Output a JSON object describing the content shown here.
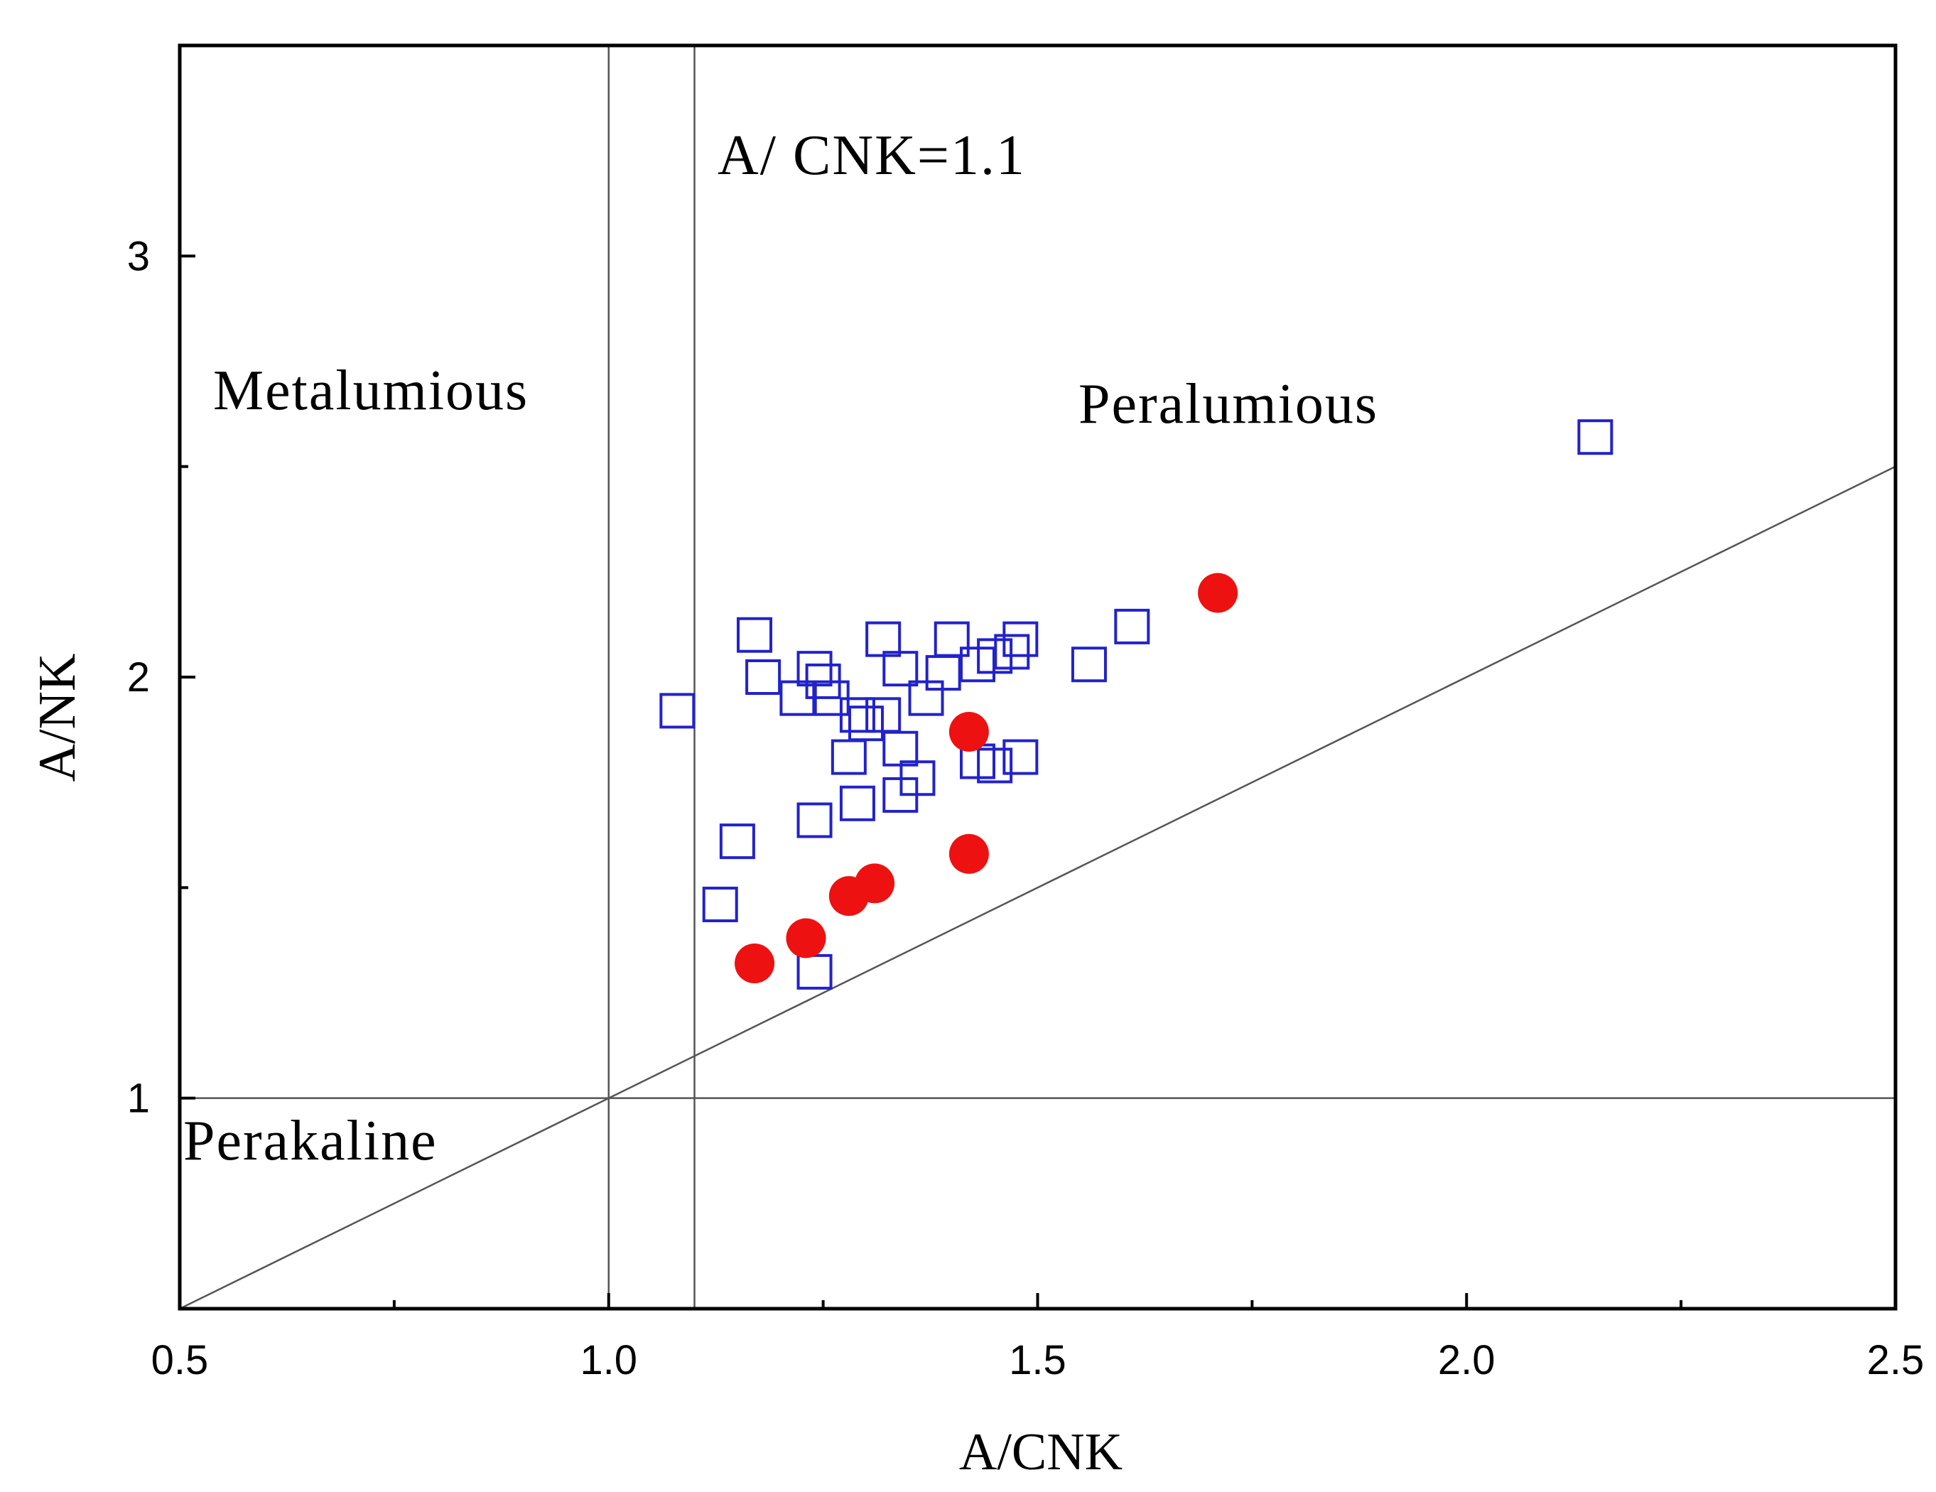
{
  "chart_data": {
    "type": "scatter",
    "title": "",
    "xlabel": "A/CNK",
    "ylabel": "A/NK",
    "xlim": [
      0.5,
      2.5
    ],
    "ylim": [
      0.5,
      3.5
    ],
    "xticks": [
      "0.5",
      "1.0",
      "1.5",
      "2.0",
      "2.5"
    ],
    "yticks": [
      "1",
      "2",
      "3"
    ],
    "grid": false,
    "reference_lines": {
      "vertical": [
        1.0,
        1.1
      ],
      "horizontal": [
        1.0
      ],
      "diagonal": {
        "from": [
          0.5,
          0.5
        ],
        "to": [
          2.5,
          2.5
        ]
      }
    },
    "annotations": {
      "acnk_line": "A/ CNK=1.1",
      "metalumious": "Metalumious",
      "peralumious": "Peralumious",
      "perakaline": "Perakaline"
    },
    "series": [
      {
        "name": "squares",
        "marker": "open-square",
        "color": "#2222cc",
        "points": [
          [
            2.15,
            2.57
          ],
          [
            1.61,
            2.12
          ],
          [
            1.56,
            2.03
          ],
          [
            1.48,
            2.09
          ],
          [
            1.47,
            2.06
          ],
          [
            1.45,
            2.05
          ],
          [
            1.43,
            2.03
          ],
          [
            1.4,
            2.09
          ],
          [
            1.39,
            2.01
          ],
          [
            1.37,
            1.95
          ],
          [
            1.34,
            2.02
          ],
          [
            1.32,
            2.09
          ],
          [
            1.17,
            2.1
          ],
          [
            1.18,
            2.0
          ],
          [
            1.22,
            1.95
          ],
          [
            1.24,
            2.02
          ],
          [
            1.25,
            1.99
          ],
          [
            1.26,
            1.95
          ],
          [
            1.08,
            1.92
          ],
          [
            1.29,
            1.91
          ],
          [
            1.3,
            1.89
          ],
          [
            1.32,
            1.91
          ],
          [
            1.34,
            1.83
          ],
          [
            1.28,
            1.81
          ],
          [
            1.43,
            1.8
          ],
          [
            1.45,
            1.79
          ],
          [
            1.48,
            1.81
          ],
          [
            1.36,
            1.76
          ],
          [
            1.34,
            1.72
          ],
          [
            1.29,
            1.7
          ],
          [
            1.24,
            1.66
          ],
          [
            1.15,
            1.61
          ],
          [
            1.13,
            1.46
          ],
          [
            1.24,
            1.3
          ]
        ]
      },
      {
        "name": "circles",
        "marker": "filled-circle",
        "color": "#ee1111",
        "points": [
          [
            1.71,
            2.2
          ],
          [
            1.42,
            1.87
          ],
          [
            1.42,
            1.58
          ],
          [
            1.31,
            1.51
          ],
          [
            1.28,
            1.48
          ],
          [
            1.23,
            1.38
          ],
          [
            1.17,
            1.32
          ]
        ]
      }
    ]
  }
}
